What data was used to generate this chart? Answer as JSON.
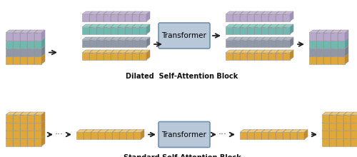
{
  "title_top": "Dilated  Self-Attention Block",
  "title_bottom": "Standard Self-Attention Block",
  "transformer_label": "Transformer",
  "bg_color": "#ffffff",
  "transformer_box_color": "#b8c8d8",
  "transformer_box_edge": "#7090b0",
  "transformer_text_color": "#000000",
  "title_fontsize": 7.0,
  "transformer_fontsize": 7.5,
  "arrow_color": "#222222",
  "dot_color": "#444444",
  "colors": {
    "purple": {
      "top": "#c8b8d8",
      "front": "#b8a8cc",
      "side": "#a090bc"
    },
    "teal": {
      "top": "#90d0c8",
      "front": "#70b8b0",
      "side": "#58a098"
    },
    "gray": {
      "top": "#b0b8c8",
      "front": "#9098a8",
      "side": "#788090"
    },
    "orange": {
      "top": "#f0c870",
      "front": "#e0a838",
      "side": "#c88820"
    }
  }
}
